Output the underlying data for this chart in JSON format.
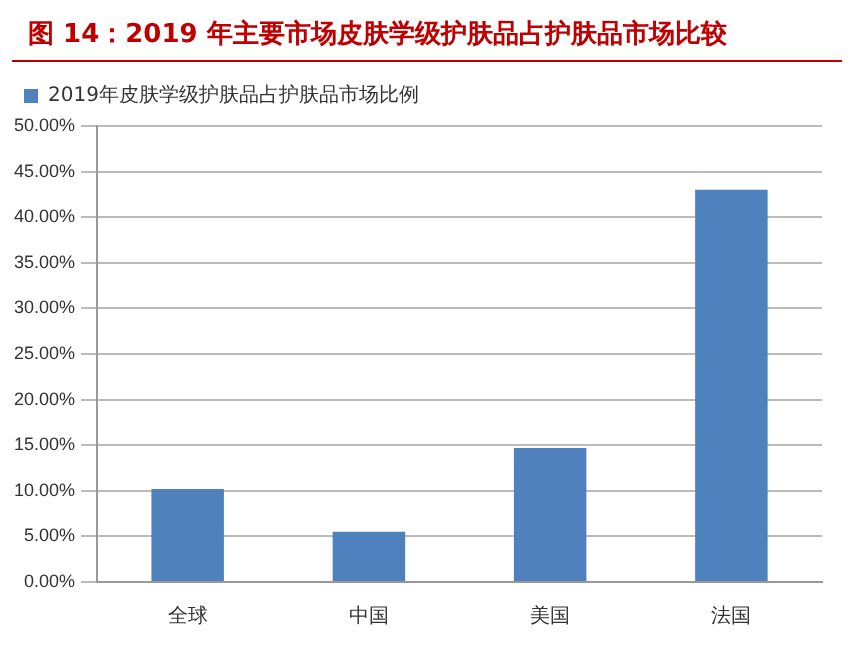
{
  "chart_data": {
    "type": "bar",
    "title": "图 14：2019 年主要市场皮肤学级护肤品占护肤品市场比较",
    "categories": [
      "全球",
      "中国",
      "美国",
      "法国"
    ],
    "series": [
      {
        "name": "2019年皮肤学级护肤品占护肤品市场比例",
        "color": "#4f81bd",
        "values": [
          10.2,
          5.5,
          14.7,
          43.0
        ]
      }
    ],
    "ylim": [
      0,
      50
    ],
    "yticks": [
      {
        "value": 0,
        "label": "0.00%"
      },
      {
        "value": 5,
        "label": "5.00%"
      },
      {
        "value": 10,
        "label": "10.00%"
      },
      {
        "value": 15,
        "label": "15.00%"
      },
      {
        "value": 20,
        "label": "20.00%"
      },
      {
        "value": 25,
        "label": "25.00%"
      },
      {
        "value": 30,
        "label": "30.00%"
      },
      {
        "value": 35,
        "label": "35.00%"
      },
      {
        "value": 40,
        "label": "40.00%"
      },
      {
        "value": 45,
        "label": "45.00%"
      },
      {
        "value": 50,
        "label": "50.00%"
      }
    ],
    "grid": "y",
    "legend": "top left"
  }
}
